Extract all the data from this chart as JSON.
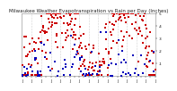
{
  "title": "Milwaukee Weather Evapotranspiration vs Rain per Day (Inches)",
  "title_fontsize": 4.0,
  "background_color": "#ffffff",
  "plot_bg_color": "#ffffff",
  "et_color": "#cc0000",
  "rain_color": "#0000bb",
  "et_marker": "s",
  "rain_marker": "s",
  "et_marker_size": 1.5,
  "rain_marker_size": 1.5,
  "ylim": [
    0.0,
    0.5
  ],
  "num_days": 730,
  "grid_color": "#aaaaaa",
  "tick_fontsize": 2.8,
  "spine_color": "#888888",
  "vline_positions": [
    52,
    105,
    157,
    209,
    261,
    313,
    365,
    417,
    470,
    522,
    574,
    626,
    678
  ],
  "xtick_positions": [
    0,
    26,
    52,
    78,
    105,
    131,
    157,
    183,
    209,
    235,
    261,
    287,
    313,
    339,
    365,
    391,
    417,
    443,
    470,
    496,
    522,
    548,
    574,
    600,
    626,
    652,
    678,
    704,
    729
  ],
  "xtick_labels": [
    "J",
    "",
    "J",
    "",
    "J",
    "",
    "J",
    "",
    "J",
    "",
    "J",
    "",
    "J",
    "",
    "J",
    "",
    "J",
    "",
    "J",
    "",
    "J",
    "",
    "J",
    "",
    "J",
    "",
    "J",
    "",
    "J"
  ],
  "ytick_vals": [
    0.1,
    0.2,
    0.3,
    0.4,
    0.5
  ],
  "ytick_labels": [
    ".1",
    ".2",
    ".3",
    ".4",
    ".5"
  ],
  "et_sample_rate": 0.35,
  "rain_sample_rate": 0.12,
  "et_max": 0.45,
  "et_noise": 0.12,
  "rain_max": 0.35,
  "seed": 123
}
